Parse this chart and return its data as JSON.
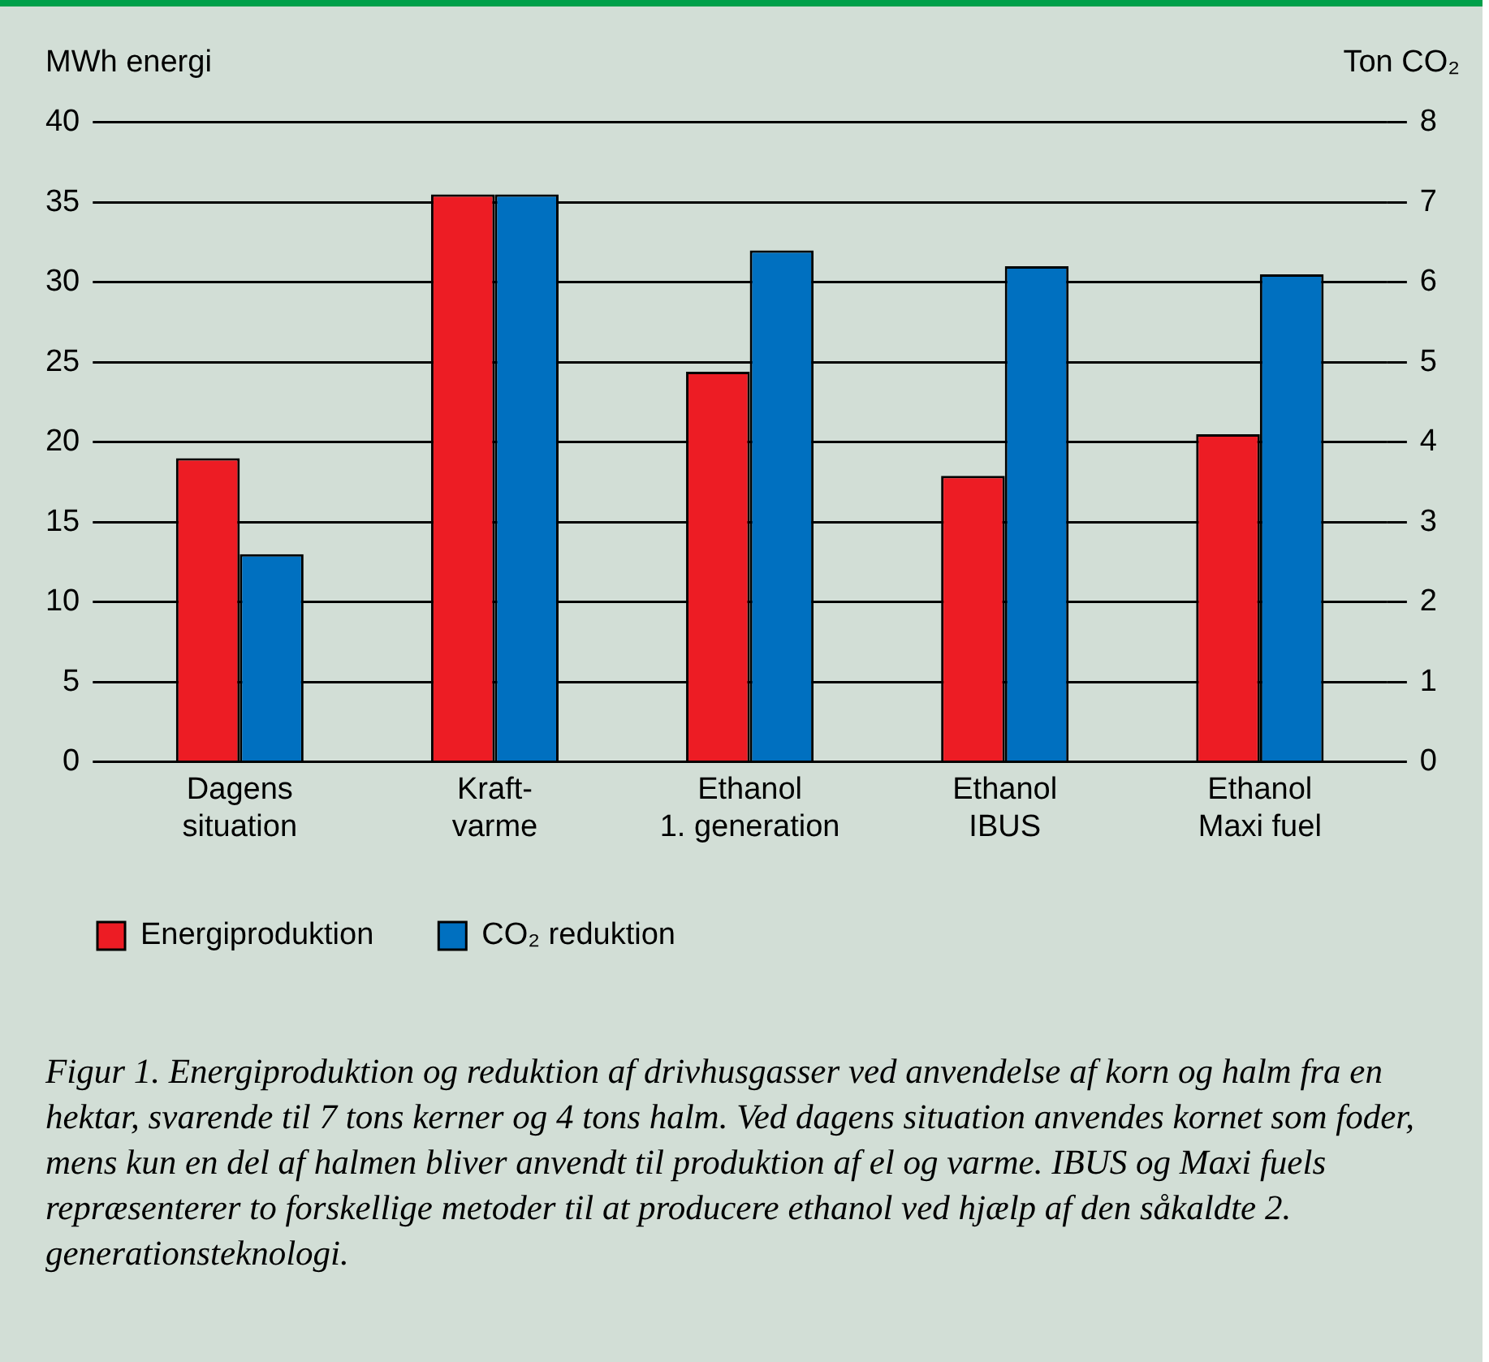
{
  "chart_data": {
    "type": "bar",
    "categories": [
      "Dagens\nsituation",
      "Kraft-\nvarme",
      "Ethanol\n1. generation",
      "Ethanol\nIBUS",
      "Ethanol\nMaxi fuel"
    ],
    "series": [
      {
        "name": "Energiproduktion",
        "color": "#ed1c24",
        "values": [
          19.0,
          35.5,
          24.4,
          17.9,
          20.5
        ]
      },
      {
        "name": "CO₂ reduktion",
        "color": "#0070c0",
        "values": [
          2.6,
          7.1,
          6.4,
          6.2,
          6.1
        ],
        "axis": "y2"
      }
    ],
    "ylabel": "MWh energi",
    "y2label": "Ton CO₂",
    "ylim": [
      0,
      40
    ],
    "yticks": [
      0,
      5,
      10,
      15,
      20,
      25,
      30,
      35,
      40
    ],
    "y2lim": [
      0,
      8
    ],
    "y2ticks": [
      0,
      1,
      2,
      3,
      4,
      5,
      6,
      7,
      8
    ],
    "grid": "y",
    "legend": "bottom",
    "annotations": [
      "Figur 1. Energiproduktion og reduktion af drivhusgasser ved anvendelse af korn og halm fra en hektar, svarende til 7 tons kerner og 4 tons halm. Ved dagens situation anvendes kornet som foder, mens kun en del af halmen bliver anvendt til produktion af el og varme. IBUS og Maxi fuels repræsenterer to forskellige metoder til at producere ethanol ved hjælp af den såkaldte 2. generationsteknologi."
    ]
  }
}
